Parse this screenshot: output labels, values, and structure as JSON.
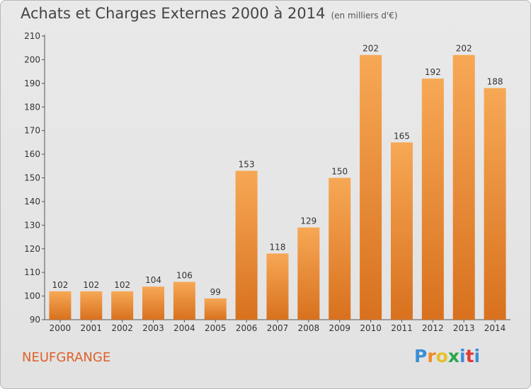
{
  "title": "Achats et Charges Externes 2000 à 2014",
  "unit": "(en milliers d'€)",
  "commune": "NEUFGRANGE",
  "brand": {
    "letters": [
      "P",
      "r",
      "o",
      "x",
      "i",
      "t",
      "i"
    ],
    "colors": [
      "#3a8fd6",
      "#f08a24",
      "#e4c12a",
      "#2aa84a",
      "#3a8fd6",
      "#e03a3a",
      "#3a8fd6"
    ]
  },
  "colors": {
    "bar_light": "#f7a855",
    "bar_dark": "#d8711e",
    "commune": "#e0602a"
  },
  "chart_data": {
    "type": "bar",
    "categories": [
      "2000",
      "2001",
      "2002",
      "2003",
      "2004",
      "2005",
      "2006",
      "2007",
      "2008",
      "2009",
      "2010",
      "2011",
      "2012",
      "2013",
      "2014"
    ],
    "values": [
      102,
      102,
      102,
      104,
      106,
      99,
      153,
      118,
      129,
      150,
      202,
      165,
      192,
      202,
      188
    ],
    "ylim": [
      90,
      210
    ],
    "yticks": [
      90,
      100,
      110,
      120,
      130,
      140,
      150,
      160,
      170,
      180,
      190,
      200,
      210
    ],
    "grid": false,
    "data_labels": true
  }
}
